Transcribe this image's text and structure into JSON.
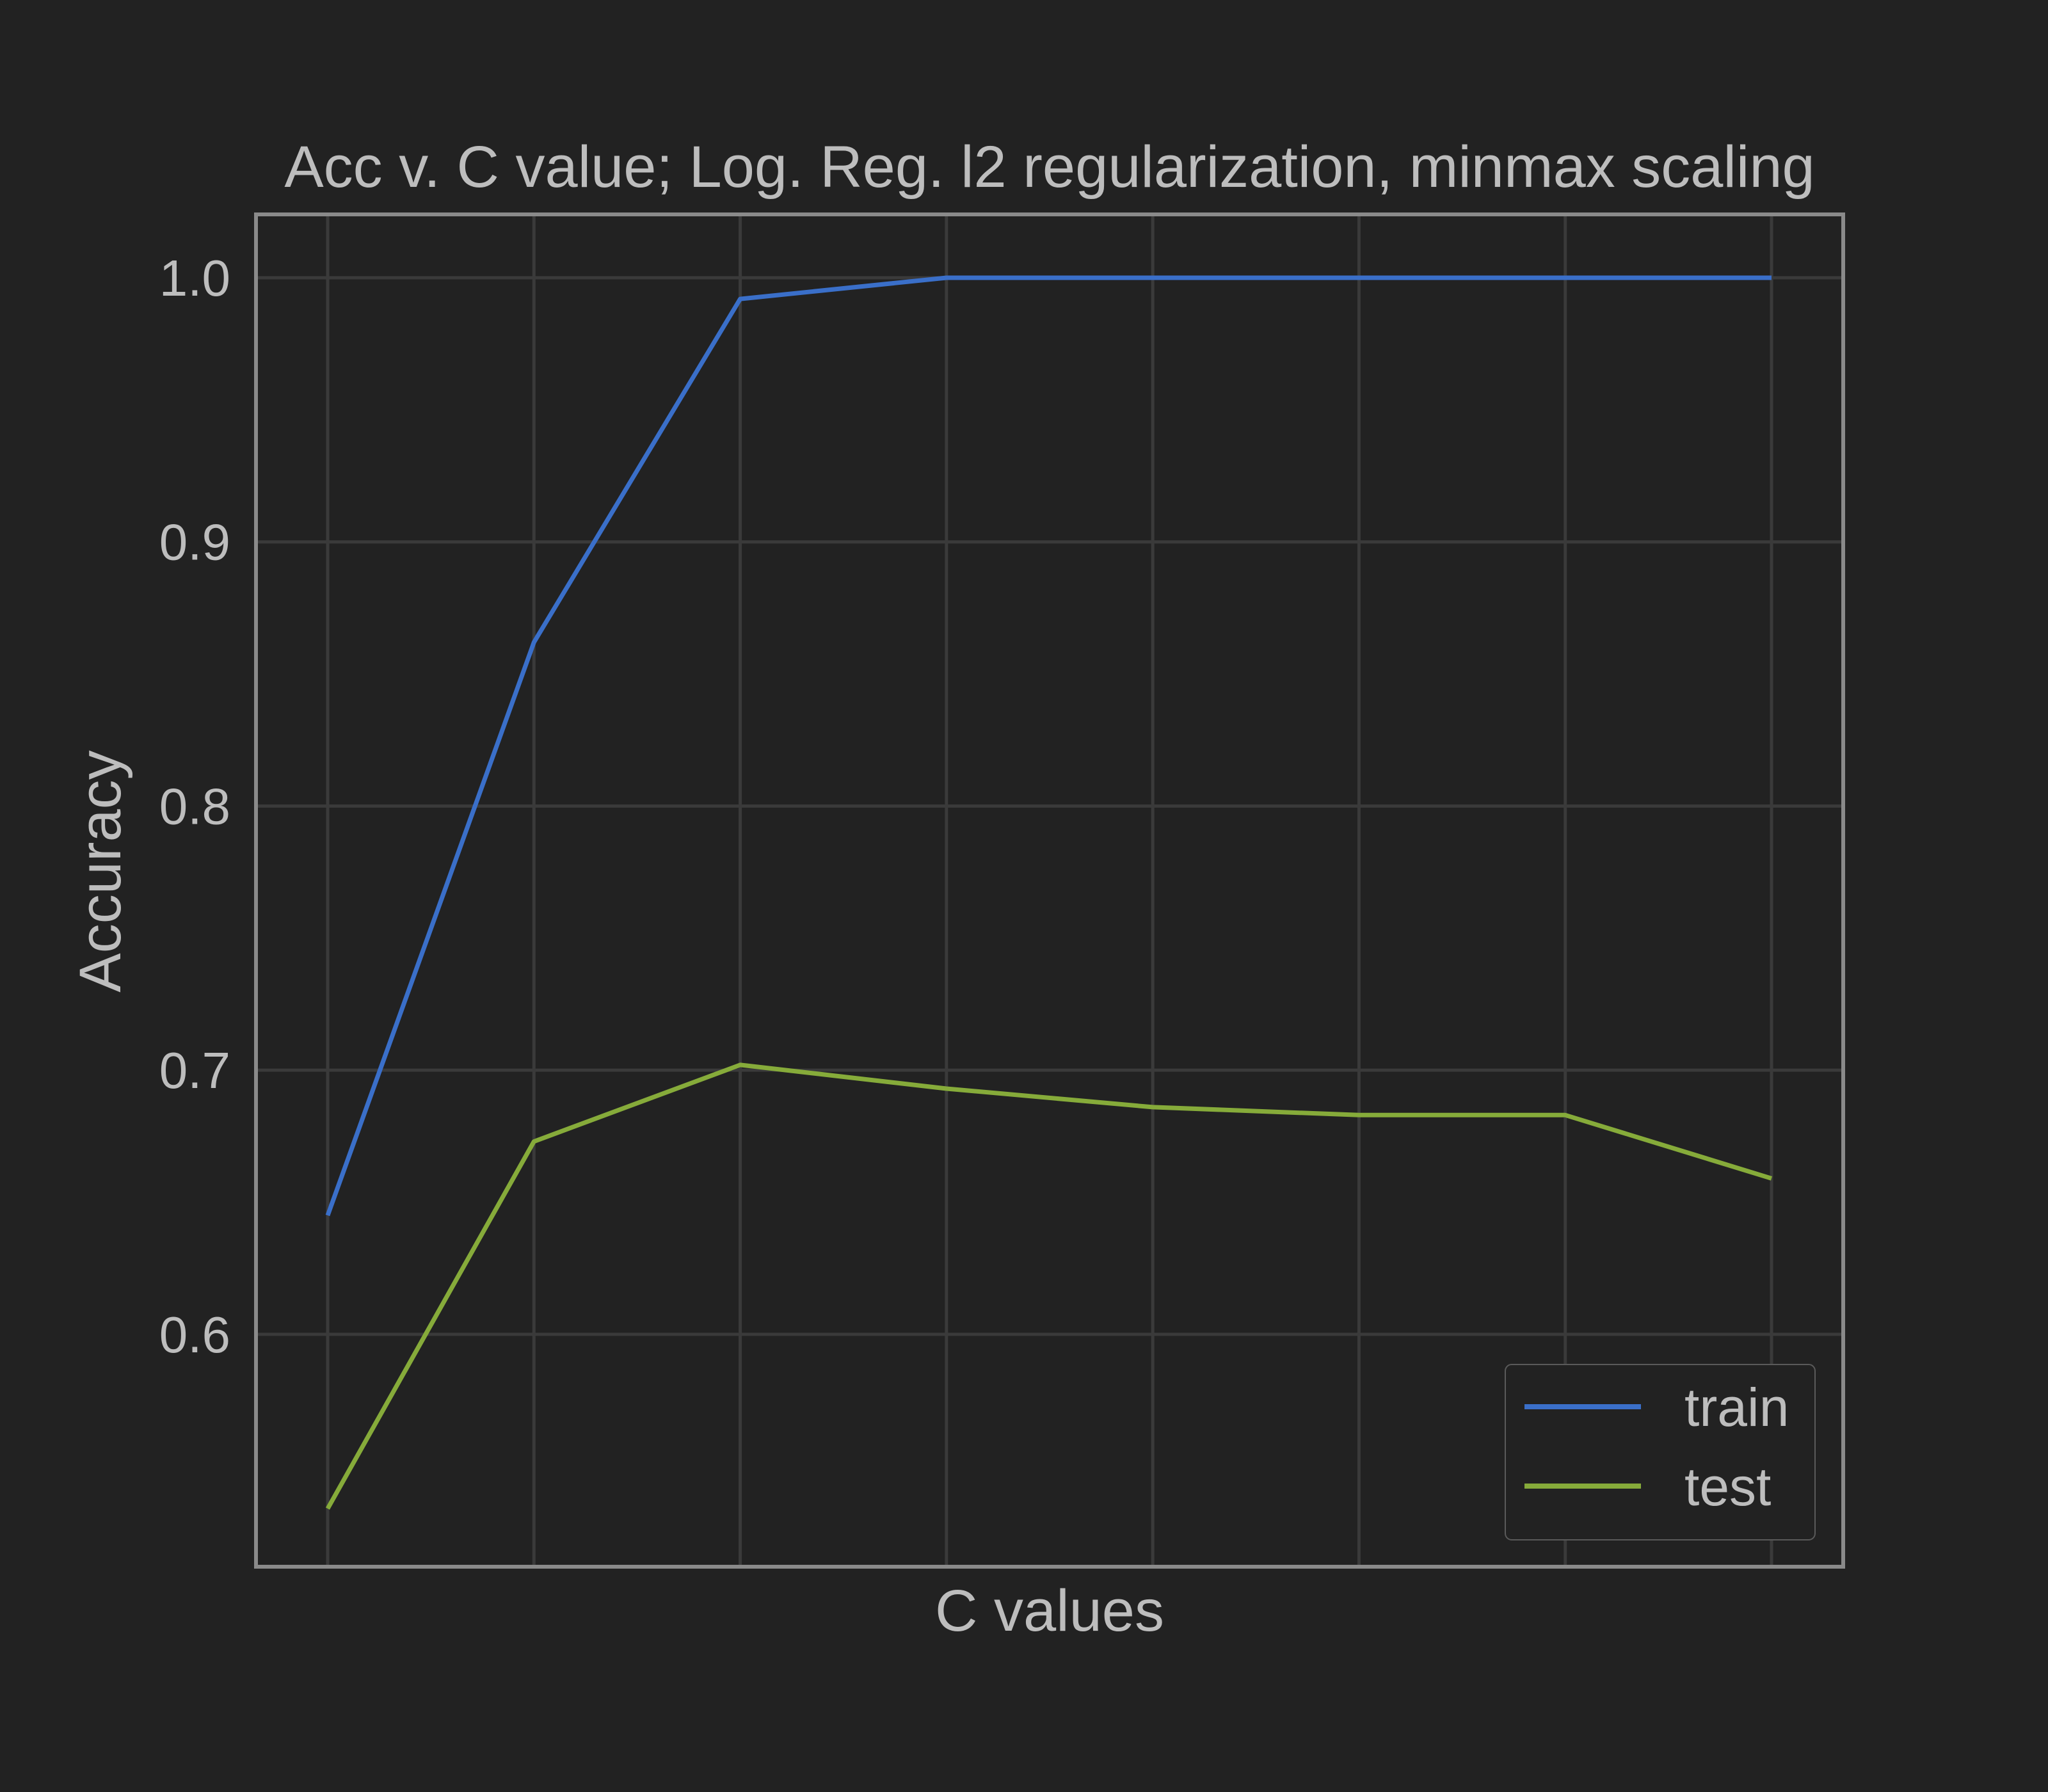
{
  "chart_data": {
    "type": "line",
    "title": "Acc v. C value; Log. Reg. l2 regularization, minmax scaling",
    "xlabel": "C values",
    "ylabel": "Accuracy",
    "x": [
      1,
      2,
      3,
      4,
      5,
      6,
      7,
      8
    ],
    "xticklabels": [],
    "ylim": [
      0.512,
      1.024
    ],
    "yticks": [
      0.6,
      0.7,
      0.8,
      0.9,
      1.0
    ],
    "yticklabels": [
      "0.6",
      "0.7",
      "0.8",
      "0.9",
      "1.0"
    ],
    "grid": true,
    "legend_position": "lower-right",
    "series": [
      {
        "name": "train",
        "color": "#3A6FC9",
        "values": [
          0.645,
          0.862,
          0.992,
          1.0,
          1.0,
          1.0,
          1.0,
          1.0
        ]
      },
      {
        "name": "test",
        "color": "#86AB3A",
        "values": [
          0.534,
          0.673,
          0.702,
          0.693,
          0.686,
          0.683,
          0.683,
          0.659
        ]
      }
    ],
    "colors": {
      "background": "#222222",
      "plot_background": "#222222",
      "grid": "#3A3A3A",
      "axes_frame": "#8A8A8A",
      "text": "#BDBDBD",
      "legend_frame": "#5A5A5A"
    }
  }
}
